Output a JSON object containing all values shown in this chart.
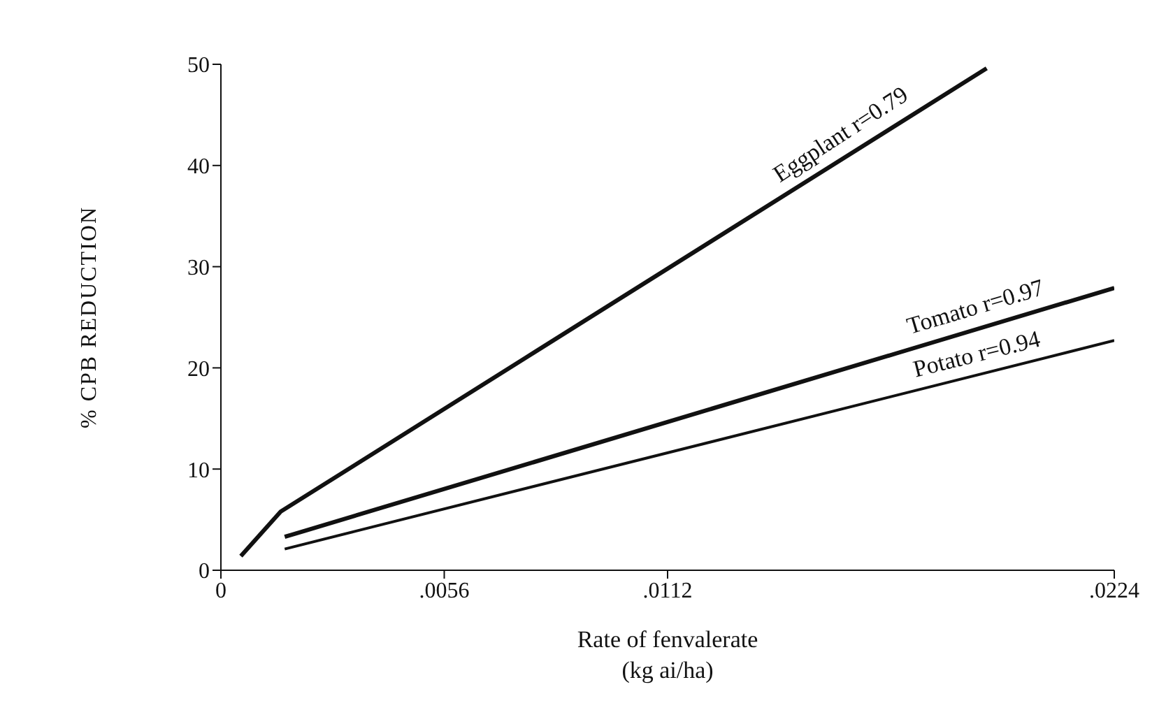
{
  "chart_data": {
    "type": "line",
    "xlabel": "Rate of fenvalerate\n(kg ai/ha)",
    "ylabel": "% CPB REDUCTION",
    "series": [
      {
        "name": "Eggplant",
        "color": "#111111",
        "x": [
          0.0005,
          0.0015,
          0.0192
        ],
        "values": [
          1.4,
          5.8,
          49.6
        ]
      },
      {
        "name": "Tomato",
        "color": "#111111",
        "x": [
          0.0016,
          0.0224
        ],
        "values": [
          3.3,
          27.9
        ]
      },
      {
        "name": "Potato",
        "color": "#111111",
        "x": [
          0.0016,
          0.0224
        ],
        "values": [
          2.1,
          22.7
        ]
      }
    ],
    "annotations": [
      "r=0.79",
      "r=0.97",
      "r=0.94"
    ],
    "xlim": [
      0,
      0.0224
    ],
    "xticks": [
      0,
      {
        "value": 0.0056,
        "label": ".0056"
      },
      {
        "value": 0.0112,
        "label": ".0112"
      },
      {
        "value": 0.0224,
        "label": ".0224"
      }
    ],
    "ylim": [
      0,
      50
    ],
    "yticks": [
      0,
      10,
      20,
      30,
      40,
      50
    ],
    "grid": false,
    "marker": "none",
    "line_style": "solid"
  }
}
